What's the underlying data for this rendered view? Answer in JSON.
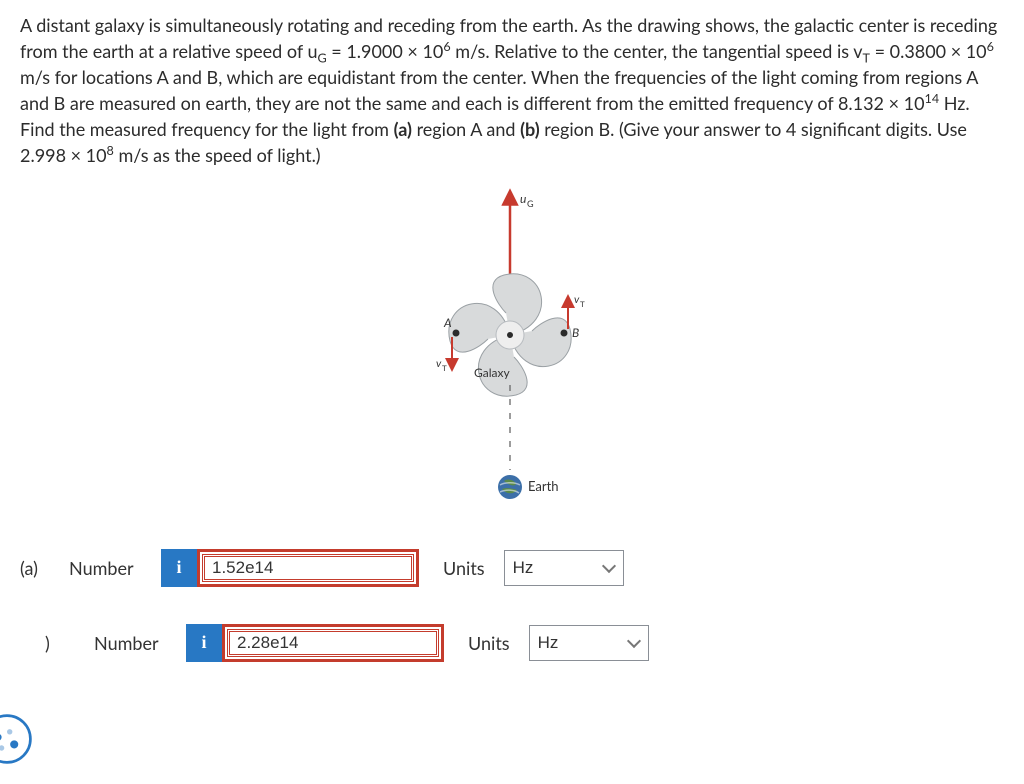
{
  "question": {
    "text": "A distant galaxy is simultaneously rotating and receding from the earth. As the drawing shows, the galactic center is receding from the earth at a relative speed of u<sub>G</sub> = 1.9000 × 10<sup>6</sup> m/s. Relative to the center, the tangential speed is v<sub>T</sub> = 0.3800 × 10<sup>6</sup> m/s for locations A and B, which are equidistant from the center. When the frequencies of the light coming from regions A and B are measured on earth, they are not the same and each is different from the emitted frequency of 8.132 × 10<sup>14</sup> Hz. Find the measured frequency for the light from <b>(a)</b> region A and <b>(b)</b> region B. (Give your answer to 4 significant digits. Use 2.998 × 10<sup>8</sup> m/s as the speed of light.)"
  },
  "diagram": {
    "uG_label": "u",
    "uG_sub": "G",
    "vT_label": "v",
    "vT_sub": "T",
    "A": "A",
    "B": "B",
    "galaxy_label": "Galaxy",
    "earth_label": "Earth",
    "colors": {
      "arrow_red": "#c73a2e",
      "galaxy_fill": "#d8dadb",
      "galaxy_stroke": "#9aa0a4",
      "text": "#333333",
      "earth_blue": "#3c6fa8",
      "earth_green": "#5a8a4a",
      "earth_cloud": "#e8eef3"
    }
  },
  "answers": {
    "a": {
      "part": "(a)",
      "number_label": "Number",
      "units_label": "Units",
      "value": "1.52e14",
      "unit": "Hz"
    },
    "b": {
      "part": ")",
      "number_label": "Number",
      "units_label": "Units",
      "value": "2.28e14",
      "unit": "Hz"
    }
  },
  "info_icon": "i"
}
